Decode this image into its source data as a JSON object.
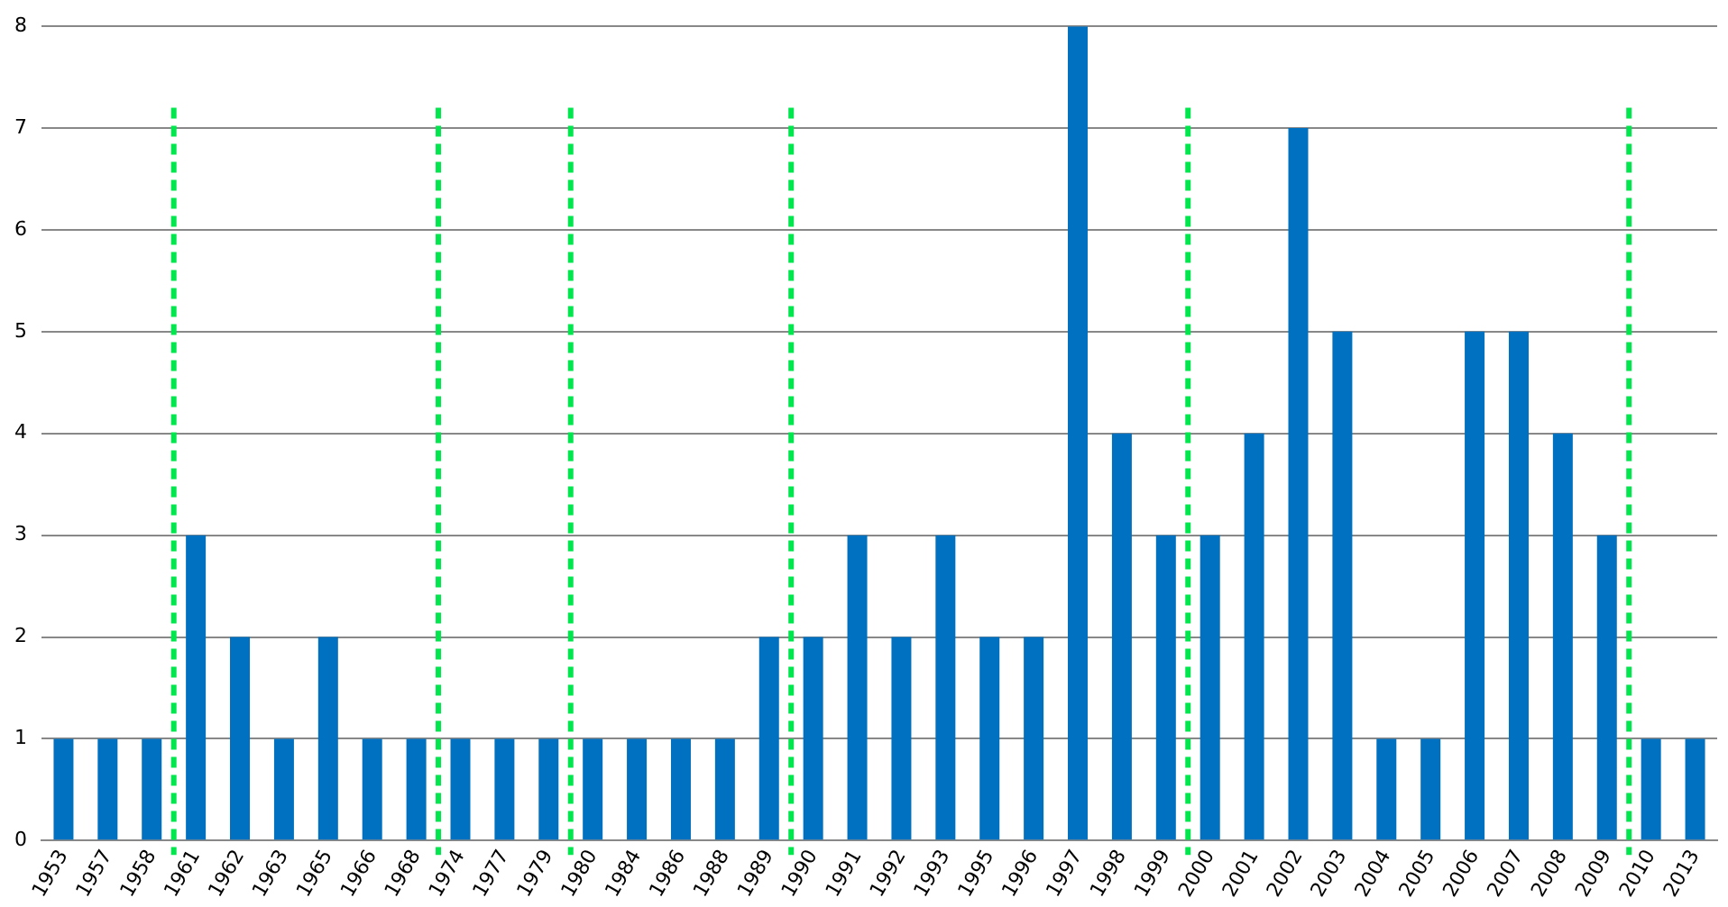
{
  "chart_data": {
    "type": "bar",
    "categories": [
      "1953",
      "1957",
      "1958",
      "1961",
      "1962",
      "1963",
      "1965",
      "1966",
      "1968",
      "1974",
      "1977",
      "1979",
      "1980",
      "1984",
      "1986",
      "1988",
      "1989",
      "1990",
      "1991",
      "1992",
      "1993",
      "1995",
      "1996",
      "1997",
      "1998",
      "1999",
      "2000",
      "2001",
      "2002",
      "2003",
      "2004",
      "2005",
      "2006",
      "2007",
      "2008",
      "2009",
      "2010",
      "2013"
    ],
    "values": [
      1,
      1,
      1,
      3,
      2,
      1,
      2,
      1,
      1,
      1,
      1,
      1,
      1,
      1,
      1,
      1,
      2,
      2,
      3,
      2,
      3,
      2,
      2,
      8,
      4,
      3,
      3,
      4,
      7,
      5,
      1,
      1,
      5,
      5,
      4,
      3,
      1,
      1
    ],
    "color": "#0070c0",
    "ylim": [
      0,
      8
    ],
    "yticks": [
      0,
      1,
      2,
      3,
      4,
      5,
      6,
      7,
      8
    ],
    "grid": "y",
    "ref_lines": [
      {
        "axis": "x",
        "value": "1961",
        "color": "#00e64d",
        "line_style": "dashed"
      },
      {
        "axis": "x",
        "value": "1974",
        "color": "#00e64d",
        "line_style": "dashed"
      },
      {
        "axis": "x",
        "value": "1980",
        "color": "#00e64d",
        "line_style": "dashed"
      },
      {
        "axis": "x",
        "value": "1990",
        "color": "#00e64d",
        "line_style": "dashed"
      },
      {
        "axis": "x",
        "value": "2000",
        "color": "#00e64d",
        "line_style": "dashed"
      },
      {
        "axis": "x",
        "value": "2010",
        "color": "#00e64d",
        "line_style": "dashed"
      }
    ]
  }
}
